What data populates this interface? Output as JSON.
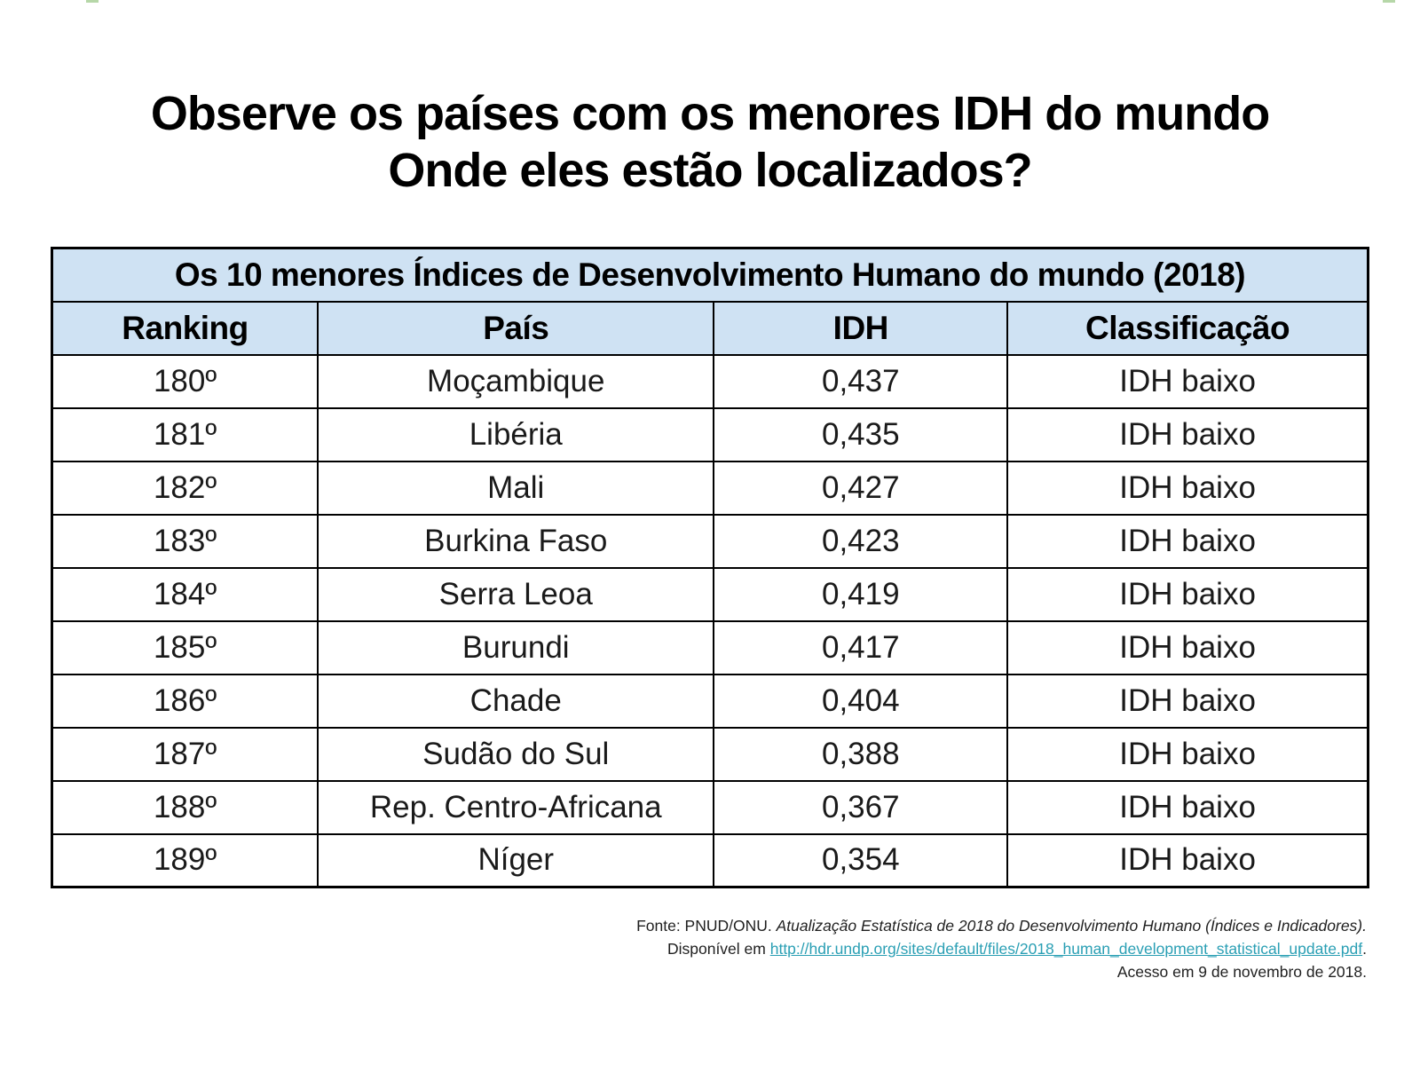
{
  "decor": {
    "mark_color": "#b6d7a8"
  },
  "title": {
    "line1": "Observe os países com os menores IDH do mundo",
    "line2": "Onde eles estão localizados?"
  },
  "table": {
    "caption": "Os 10 menores Índices de Desenvolvimento Humano do mundo (2018)",
    "header_bg": "#cfe2f3",
    "columns": [
      "Ranking",
      "País",
      "IDH",
      "Classificação"
    ],
    "rows": [
      [
        "180º",
        "Moçambique",
        "0,437",
        "IDH baixo"
      ],
      [
        "181º",
        "Libéria",
        "0,435",
        "IDH baixo"
      ],
      [
        "182º",
        "Mali",
        "0,427",
        "IDH baixo"
      ],
      [
        "183º",
        "Burkina Faso",
        "0,423",
        "IDH baixo"
      ],
      [
        "184º",
        "Serra Leoa",
        "0,419",
        "IDH baixo"
      ],
      [
        "185º",
        "Burundi",
        "0,417",
        "IDH baixo"
      ],
      [
        "186º",
        "Chade",
        "0,404",
        "IDH baixo"
      ],
      [
        "187º",
        "Sudão do Sul",
        "0,388",
        "IDH baixo"
      ],
      [
        "188º",
        "Rep. Centro-Africana",
        "0,367",
        "IDH baixo"
      ],
      [
        "189º",
        "Níger",
        "0,354",
        "IDH baixo"
      ]
    ]
  },
  "footer": {
    "source_prefix": "Fonte: PNUD/ONU. ",
    "source_italic": "Atualização Estatística de 2018 do Desenvolvimento Humano (Índices e Indicadores).",
    "link_prefix": "Disponível em ",
    "link_text": "http://hdr.undp.org/sites/default/files/2018_human_development_statistical_update.pdf",
    "link_suffix": ".",
    "access_line": "Acesso em 9 de novembro de 2018.",
    "link_color": "#2a9fb4"
  }
}
